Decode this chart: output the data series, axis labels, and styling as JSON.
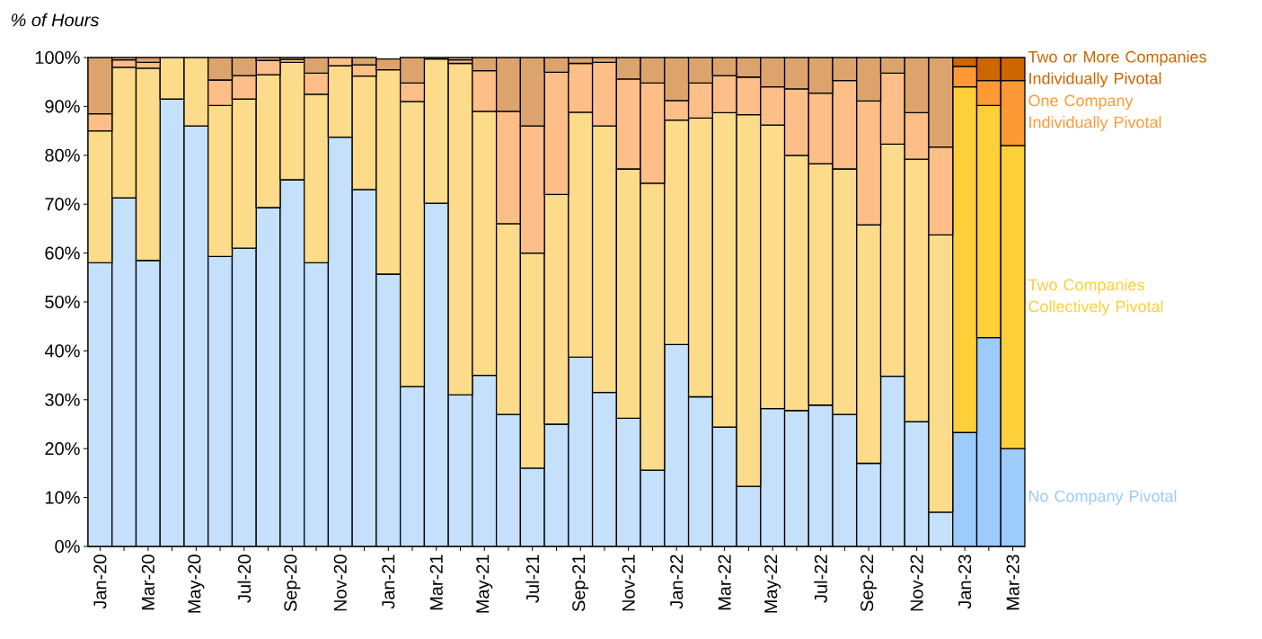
{
  "chart_data": {
    "type": "bar",
    "stacked": true,
    "ylabel": "% of Hours",
    "legend": "right",
    "ylim": [
      0,
      100
    ],
    "yticks": [
      {
        "value": 0,
        "label": "0%"
      },
      {
        "value": 10,
        "label": "10%"
      },
      {
        "value": 20,
        "label": "20%"
      },
      {
        "value": 30,
        "label": "30%"
      },
      {
        "value": 40,
        "label": "40%"
      },
      {
        "value": 50,
        "label": "50%"
      },
      {
        "value": 60,
        "label": "60%"
      },
      {
        "value": 70,
        "label": "70%"
      },
      {
        "value": 80,
        "label": "80%"
      },
      {
        "value": 90,
        "label": "90%"
      },
      {
        "value": 100,
        "label": "100%"
      }
    ],
    "categories": [
      "Jan-20",
      null,
      "Mar-20",
      null,
      "May-20",
      null,
      "Jul-20",
      null,
      "Sep-20",
      null,
      "Nov-20",
      null,
      "Jan-21",
      null,
      "Mar-21",
      null,
      "May-21",
      null,
      "Jul-21",
      null,
      "Sep-21",
      null,
      "Nov-21",
      null,
      "Jan-22",
      null,
      "Mar-22",
      null,
      "May-22",
      null,
      "Jul-22",
      null,
      "Sep-22",
      null,
      "Nov-22",
      null,
      "Jan-23",
      null,
      "Mar-23"
    ],
    "series": [
      {
        "name": "No Company Pivotal",
        "values": [
          58,
          71.3,
          58.5,
          91.5,
          86,
          59.3,
          61,
          69.3,
          75,
          58,
          83.7,
          73,
          55.7,
          32.7,
          70.2,
          31,
          35,
          27,
          16,
          25,
          38.7,
          31.5,
          26.2,
          15.6,
          41.3,
          30.6,
          24.4,
          12.3,
          28.2,
          27.8,
          28.9,
          27,
          17,
          34.8,
          25.5,
          7,
          23.3,
          42.7,
          20
        ],
        "colors": [
          "#c5e0fb",
          "#c5e0fb",
          "#c5e0fb",
          "#c5e0fb",
          "#c5e0fb",
          "#c5e0fb",
          "#c5e0fb",
          "#c5e0fb",
          "#c5e0fb",
          "#c5e0fb",
          "#c5e0fb",
          "#c5e0fb",
          "#c5e0fb",
          "#c5e0fb",
          "#c5e0fb",
          "#c5e0fb",
          "#c5e0fb",
          "#c5e0fb",
          "#c5e0fb",
          "#c5e0fb",
          "#c5e0fb",
          "#c5e0fb",
          "#c5e0fb",
          "#c5e0fb",
          "#c5e0fb",
          "#c5e0fb",
          "#c5e0fb",
          "#c5e0fb",
          "#c5e0fb",
          "#c5e0fb",
          "#c5e0fb",
          "#c5e0fb",
          "#c5e0fb",
          "#c5e0fb",
          "#c5e0fb",
          "#c5e0fb",
          "#9dcbfb",
          "#9dcbfb",
          "#9dcbfb"
        ]
      },
      {
        "name": "Two Companies Collectively Pivotal",
        "values": [
          27,
          26.7,
          39.3,
          8.5,
          14,
          30.9,
          30.5,
          27.2,
          24,
          34.5,
          14.6,
          23.2,
          41.8,
          58.3,
          29.5,
          67.8,
          54,
          39,
          44,
          47,
          50.1,
          54.5,
          51,
          58.7,
          45.9,
          57,
          64.3,
          76,
          58,
          52.2,
          49.4,
          50.2,
          48.8,
          47.5,
          53.7,
          56.7,
          70.7,
          47.5,
          62
        ],
        "colors": [
          "#fcdc8a",
          "#fcdc8a",
          "#fcdc8a",
          "#fcdc8a",
          "#fcdc8a",
          "#fcdc8a",
          "#fcdc8a",
          "#fcdc8a",
          "#fcdc8a",
          "#fcdc8a",
          "#fcdc8a",
          "#fcdc8a",
          "#fcdc8a",
          "#fcdc8a",
          "#fcdc8a",
          "#fcdc8a",
          "#fcdc8a",
          "#fcdc8a",
          "#fcdc8a",
          "#fcdc8a",
          "#fcdc8a",
          "#fcdc8a",
          "#fcdc8a",
          "#fcdc8a",
          "#fcdc8a",
          "#fcdc8a",
          "#fcdc8a",
          "#fcdc8a",
          "#fcdc8a",
          "#fcdc8a",
          "#fcdc8a",
          "#fcdc8a",
          "#fcdc8a",
          "#fcdc8a",
          "#fcdc8a",
          "#fcdc8a",
          "#fdcf38",
          "#fdcf38",
          "#fdcf38"
        ]
      },
      {
        "name": "One Company Individually Pivotal",
        "values": [
          3.5,
          1.5,
          1.2,
          0,
          0,
          5.2,
          4.8,
          2.9,
          0.6,
          4.3,
          1.7,
          2.3,
          null,
          3.8,
          0.3,
          0.7,
          8.3,
          23,
          26,
          25,
          10,
          13,
          18.4,
          20.5,
          4,
          7.2,
          7.6,
          7.7,
          7.8,
          13.6,
          14.4,
          18.1,
          25.3,
          14.5,
          9.5,
          18,
          4.2,
          5.1,
          13.3
        ],
        "colors": [
          "#fdbf87",
          "#fdbf87",
          "#fdbf87",
          "#fdbf87",
          "#fdbf87",
          "#fdbf87",
          "#fdbf87",
          "#fdbf87",
          "#fdbf87",
          "#fdbf87",
          "#fdbf87",
          "#fdbf87",
          "#fdbf87",
          "#fdbf87",
          "#fdbf87",
          "#fdbf87",
          "#fdbf87",
          "#fdbf87",
          "#fdbf87",
          "#fdbf87",
          "#fdbf87",
          "#fdbf87",
          "#fdbf87",
          "#fdbf87",
          "#fdbf87",
          "#fdbf87",
          "#fdbf87",
          "#fdbf87",
          "#fdbf87",
          "#fdbf87",
          "#fdbf87",
          "#fdbf87",
          "#fdbf87",
          "#fdbf87",
          "#fdbf87",
          "#fdbf87",
          "#fd9a35",
          "#fd9a35",
          "#fd9a35"
        ]
      },
      {
        "name": "Two or More Companies Individually Pivotal",
        "values": [
          11.5,
          0.5,
          1,
          0,
          0,
          4.6,
          3.7,
          0.6,
          0.4,
          3.2,
          0,
          1.5,
          2.2,
          5.2,
          0,
          0.5,
          2.7,
          11,
          14,
          3,
          1.2,
          1,
          4.4,
          5.2,
          8.8,
          5.2,
          3.7,
          4,
          6,
          6.4,
          7.3,
          4.7,
          8.9,
          3.2,
          11.3,
          18.3,
          1.8,
          4.7,
          4.7
        ],
        "colors": [
          "#dca46c",
          "#dca46c",
          "#dca46c",
          "#dca46c",
          "#dca46c",
          "#dca46c",
          "#dca46c",
          "#dca46c",
          "#dca46c",
          "#dca46c",
          "#dca46c",
          "#dca46c",
          "#dca46c",
          "#dca46c",
          "#dca46c",
          "#dca46c",
          "#dca46c",
          "#dca46c",
          "#dca46c",
          "#dca46c",
          "#dca46c",
          "#dca46c",
          "#dca46c",
          "#dca46c",
          "#dca46c",
          "#dca46c",
          "#dca46c",
          "#dca46c",
          "#dca46c",
          "#dca46c",
          "#dca46c",
          "#dca46c",
          "#dca46c",
          "#dca46c",
          "#dca46c",
          "#dca46c",
          "#cc6600",
          "#cc6600",
          "#cc6600"
        ]
      }
    ]
  }
}
